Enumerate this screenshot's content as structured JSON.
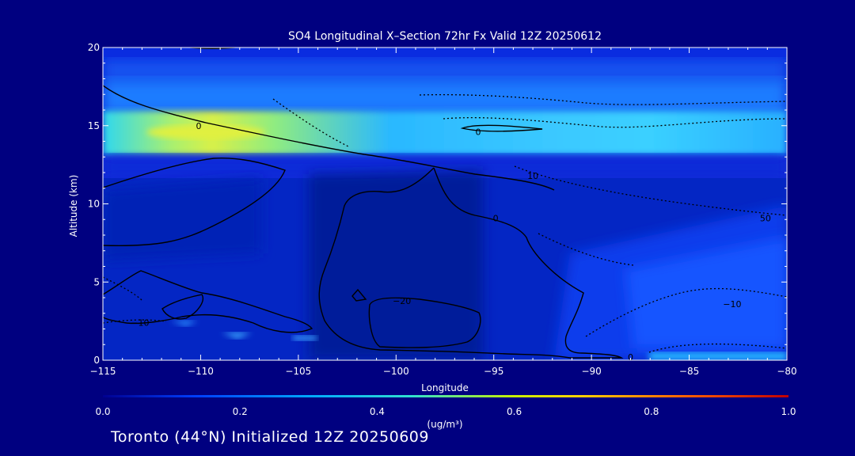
{
  "chart_data": {
    "type": "heatmap",
    "title": "SO4 Longitudinal X–Section 72hr  Fx Valid 12Z 20250612",
    "xlabel": "Longitude",
    "ylabel": "Altitude (km)",
    "xlim": [
      -115,
      -80
    ],
    "ylim": [
      0,
      20
    ],
    "x_ticks": [
      -115,
      -110,
      -105,
      -100,
      -95,
      -90,
      -85,
      -80
    ],
    "x_tick_labels": [
      "−115",
      "−110",
      "−105",
      "−100",
      "−95",
      "−90",
      "−85",
      "−80"
    ],
    "y_ticks": [
      0,
      5,
      10,
      15,
      20
    ],
    "y_tick_labels": [
      "0",
      "5",
      "10",
      "15",
      "20"
    ],
    "colorbar": {
      "min": 0.0,
      "max": 1.0,
      "ticks": [
        "0.0",
        "0.2",
        "0.4",
        "0.6",
        "0.8",
        "1.0"
      ],
      "unit_label": "(ug/m³)",
      "colors": [
        "#000090",
        "#0040ff",
        "#00a8ff",
        "#30e0d0",
        "#c8f000",
        "#ffd000",
        "#ff6000",
        "#c00000"
      ]
    },
    "contour_labels": [
      {
        "text": "0",
        "x": -110.1,
        "y": 15.0
      },
      {
        "text": "0",
        "x": -95.8,
        "y": 14.6
      },
      {
        "text": "10",
        "x": -93.0,
        "y": 11.8
      },
      {
        "text": "0",
        "x": -94.9,
        "y": 9.1
      },
      {
        "text": "−20",
        "x": -99.7,
        "y": 3.8
      },
      {
        "text": "−10",
        "x": -113.1,
        "y": 2.4
      },
      {
        "text": "0",
        "x": -88.0,
        "y": 0.2
      },
      {
        "text": "50",
        "x": -81.1,
        "y": 9.1
      },
      {
        "text": "−10",
        "x": -82.8,
        "y": 3.6
      }
    ]
  },
  "footer": "Toronto (44°N) Initialized 12Z 20250609"
}
